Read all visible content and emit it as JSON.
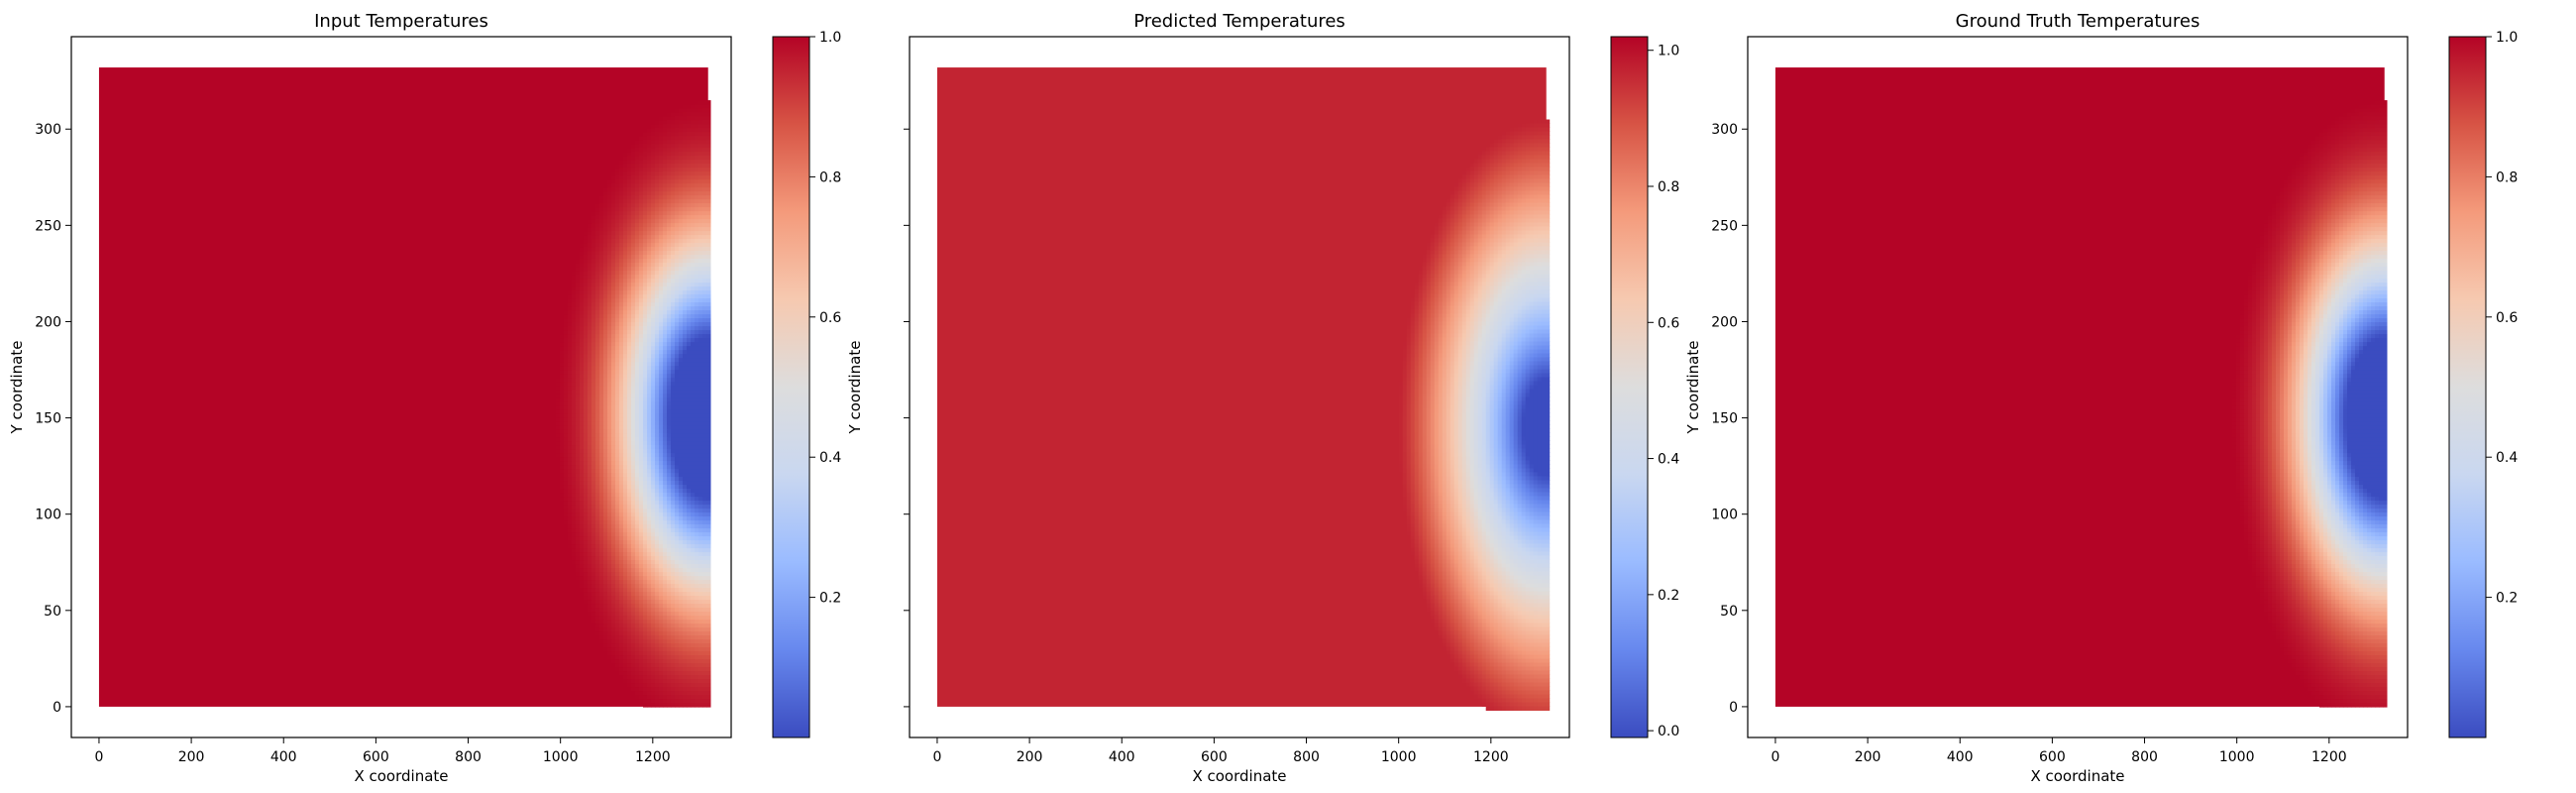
{
  "colormap": {
    "name": "coolwarm",
    "stops": [
      "#3b4cc0",
      "#6788ee",
      "#9abbff",
      "#c9d7f0",
      "#dddddd",
      "#f6c9b0",
      "#f49a7b",
      "#d75445",
      "#b40426"
    ]
  },
  "chart_data": [
    {
      "type": "heatmap",
      "title": "Input Temperatures",
      "xlabel": "X coordinate",
      "ylabel": "Y coordinate",
      "xlim": [
        -60,
        1370
      ],
      "ylim": [
        -16,
        348
      ],
      "xticks": [
        0,
        200,
        400,
        600,
        800,
        1000,
        1200
      ],
      "yticks": [
        0,
        50,
        100,
        150,
        200,
        250,
        300
      ],
      "show_ytick_labels": true,
      "grid": false,
      "field": {
        "x_range": [
          0,
          1320
        ],
        "y_range": [
          0,
          332
        ],
        "background": 1.0,
        "cold_spot": {
          "x": 1320,
          "y": 150,
          "value": 0.0,
          "radius": 330,
          "shape": "smooth"
        }
      },
      "colorbar": {
        "min": 0.0,
        "max": 1.0,
        "ticks": [
          0.2,
          0.4,
          0.6,
          0.8,
          1.0
        ],
        "tick_labels": [
          "0.2",
          "0.4",
          "0.6",
          "0.8",
          "1.0"
        ]
      }
    },
    {
      "type": "heatmap",
      "title": "Predicted Temperatures",
      "xlabel": "X coordinate",
      "ylabel": "Y coordinate",
      "xlim": [
        -60,
        1370
      ],
      "ylim": [
        -16,
        348
      ],
      "xticks": [
        0,
        200,
        400,
        600,
        800,
        1000,
        1200
      ],
      "yticks": [
        0,
        50,
        100,
        150,
        200,
        250,
        300
      ],
      "show_ytick_labels": false,
      "grid": false,
      "field": {
        "x_range": [
          0,
          1320
        ],
        "y_range": [
          0,
          332
        ],
        "background": 0.95,
        "cold_spot": {
          "x": 1320,
          "y": 145,
          "value": 0.0,
          "radius": 320,
          "shape": "sharp"
        }
      },
      "colorbar": {
        "min": -0.01,
        "max": 1.02,
        "ticks": [
          0.0,
          0.2,
          0.4,
          0.6,
          0.8,
          1.0
        ],
        "tick_labels": [
          "0.0",
          "0.2",
          "0.4",
          "0.6",
          "0.8",
          "1.0"
        ]
      }
    },
    {
      "type": "heatmap",
      "title": "Ground Truth Temperatures",
      "xlabel": "X coordinate",
      "ylabel": "Y coordinate",
      "xlim": [
        -60,
        1370
      ],
      "ylim": [
        -16,
        348
      ],
      "xticks": [
        0,
        200,
        400,
        600,
        800,
        1000,
        1200
      ],
      "yticks": [
        0,
        50,
        100,
        150,
        200,
        250,
        300
      ],
      "show_ytick_labels": true,
      "grid": false,
      "field": {
        "x_range": [
          0,
          1320
        ],
        "y_range": [
          0,
          332
        ],
        "background": 1.0,
        "cold_spot": {
          "x": 1320,
          "y": 150,
          "value": 0.0,
          "radius": 330,
          "shape": "smooth"
        }
      },
      "colorbar": {
        "min": 0.0,
        "max": 1.0,
        "ticks": [
          0.2,
          0.4,
          0.6,
          0.8,
          1.0
        ],
        "tick_labels": [
          "0.2",
          "0.4",
          "0.6",
          "0.8",
          "1.0"
        ]
      }
    }
  ]
}
